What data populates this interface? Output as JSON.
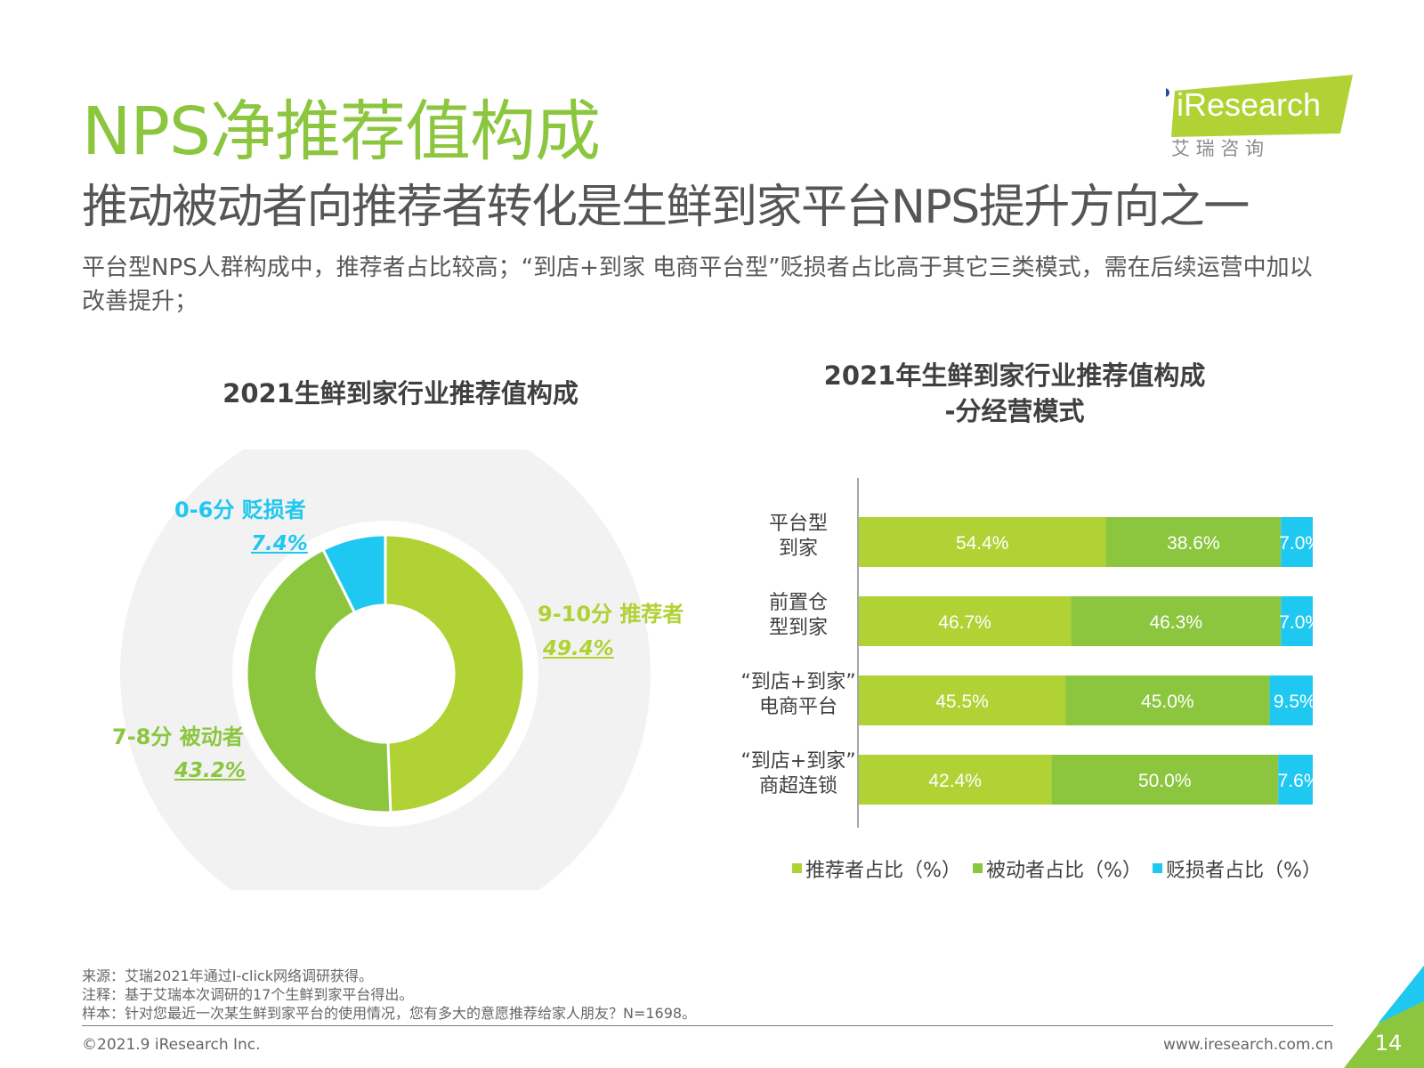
{
  "header": {
    "title": "NPS净推荐值构成",
    "subtitle": "推动被动者向推荐者转化是生鲜到家平台NPS提升方向之一",
    "description": "平台型NPS人群构成中，推荐者占比较高；“到店+到家 电商平台型”贬损者占比高于其它三类模式，需在后续运营中加以改善提升；"
  },
  "logo": {
    "name": "iResearch",
    "sub": "艾 瑞 咨 询"
  },
  "colors": {
    "promoter": "#b1d234",
    "passive": "#8cc63f",
    "detractor": "#1ec8f0",
    "title": "#8cc63f",
    "ring_bg": "#f2f2f2"
  },
  "chart_data": [
    {
      "type": "pie",
      "title": "2021生鲜到家行业推荐值构成",
      "slices": [
        {
          "label": "9-10分 推荐者",
          "value": 49.4,
          "value_label": "49.4%"
        },
        {
          "label": "7-8分 被动者",
          "value": 43.2,
          "value_label": "43.2%"
        },
        {
          "label": "0-6分 贬损者",
          "value": 7.4,
          "value_label": "7.4%"
        }
      ]
    },
    {
      "type": "bar",
      "orientation": "horizontal",
      "stacked": true,
      "title_lines": [
        "2021年生鲜到家行业推荐值构成",
        "-分经营模式"
      ],
      "categories": [
        [
          "平台型",
          "到家"
        ],
        [
          "前置仓",
          "型到家"
        ],
        [
          "“到店+到家”",
          "电商平台"
        ],
        [
          "“到店+到家”",
          "商超连锁"
        ]
      ],
      "series": [
        {
          "name": "推荐者占比（%）",
          "values": [
            54.4,
            46.7,
            45.5,
            42.4
          ],
          "labels": [
            "54.4%",
            "46.7%",
            "45.5%",
            "42.4%"
          ]
        },
        {
          "name": "被动者占比（%）",
          "values": [
            38.6,
            46.3,
            45.0,
            50.0
          ],
          "labels": [
            "38.6%",
            "46.3%",
            "45.0%",
            "50.0%"
          ]
        },
        {
          "name": "贬损者占比（%）",
          "values": [
            7.0,
            7.0,
            9.5,
            7.6
          ],
          "labels": [
            "7.0%",
            "7.0%",
            "9.5%",
            "7.6%"
          ]
        }
      ],
      "xlim": [
        0,
        100
      ],
      "legend": "bottom"
    }
  ],
  "footer": {
    "source_lines": [
      "来源：艾瑞2021年通过I-click网络调研获得。",
      "注释：基于艾瑞本次调研的17个生鲜到家平台得出。",
      "样本：针对您最近一次某生鲜到家平台的使用情况，您有多大的意愿推荐给家人朋友？N=1698。"
    ],
    "copyright": "©2021.9 iResearch Inc.",
    "website": "www.iresearch.com.cn",
    "page_number": "14"
  }
}
